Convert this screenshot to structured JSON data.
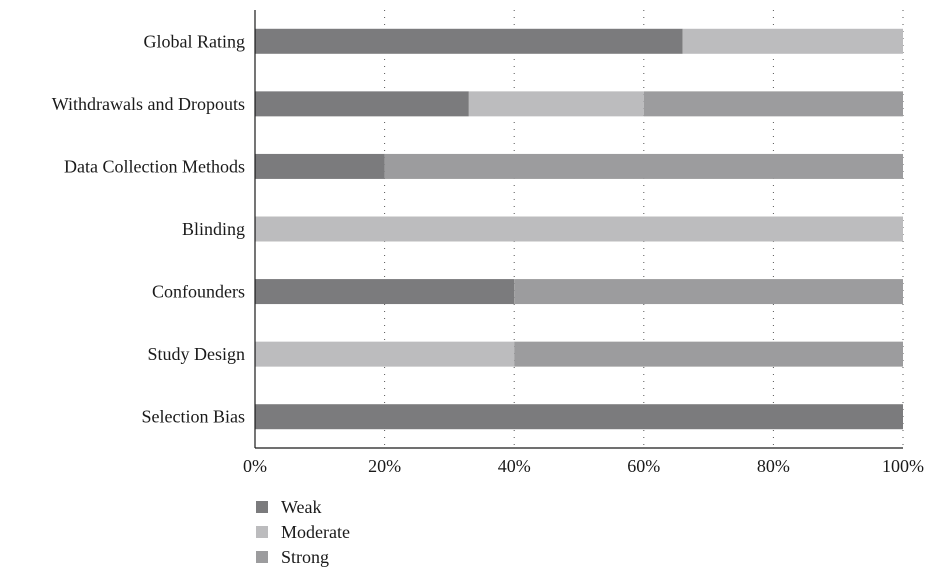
{
  "chart_data": {
    "type": "bar",
    "orientation": "horizontal",
    "stacked": true,
    "categories": [
      "Global Rating",
      "Withdrawals and Dropouts",
      "Data Collection Methods",
      "Blinding",
      "Confounders",
      "Study Design",
      "Selection Bias"
    ],
    "series": [
      {
        "name": "Weak",
        "color": "#7b7b7d",
        "values": [
          66,
          33,
          20,
          0,
          40,
          0,
          100
        ]
      },
      {
        "name": "Moderate",
        "color": "#bcbcbe",
        "values": [
          34,
          27,
          0,
          100,
          0,
          40,
          0
        ]
      },
      {
        "name": "Strong",
        "color": "#9c9c9e",
        "values": [
          0,
          40,
          80,
          0,
          60,
          60,
          0
        ]
      }
    ],
    "xlim": [
      0,
      100
    ],
    "x_ticks": [
      "0%",
      "20%",
      "40%",
      "60%",
      "80%",
      "100%"
    ],
    "grid": "vertical-dotted",
    "legend_position": "bottom-left"
  }
}
